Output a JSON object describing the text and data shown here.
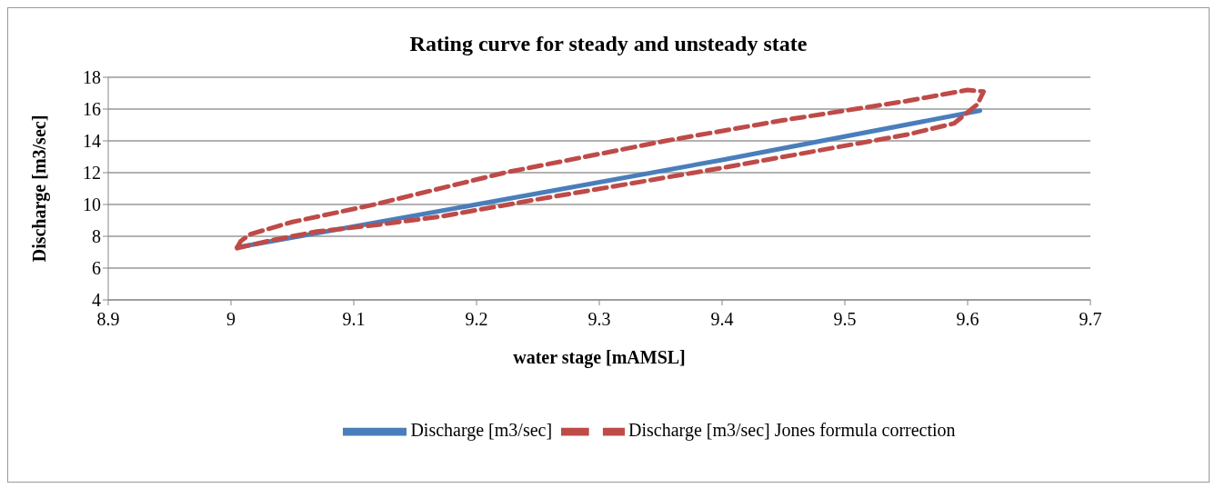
{
  "chart_data": {
    "type": "line",
    "title": "Rating curve for steady and unsteady state",
    "xlabel": "water stage [mAMSL]",
    "ylabel": "Discharge [m3/sec]",
    "xlim": [
      8.9,
      9.7
    ],
    "xticks": [
      8.9,
      9,
      9.1,
      9.2,
      9.3,
      9.4,
      9.5,
      9.6,
      9.7
    ],
    "ylim": [
      4,
      18
    ],
    "yticks": [
      4,
      6,
      8,
      10,
      12,
      14,
      16,
      18
    ],
    "grid": "y",
    "legend": "bottom",
    "marker": "none",
    "series": [
      {
        "name": "Discharge [m3/sec]",
        "color": "#4a7ebb",
        "line_style": "solid",
        "x": [
          9.005,
          9.2,
          9.4,
          9.61
        ],
        "values": [
          7.3,
          10.0,
          12.8,
          15.9
        ]
      },
      {
        "name": "Discharge [m3/sec] Jones formula correction",
        "color": "#be4b48",
        "line_style": "dashed",
        "x": [
          9.005,
          9.008,
          9.016,
          9.05,
          9.117,
          9.223,
          9.354,
          9.45,
          9.5,
          9.55,
          9.6,
          9.613,
          9.608,
          9.589,
          9.551,
          9.4,
          9.248,
          9.172,
          9.117,
          9.07,
          9.03,
          9.005
        ],
        "values": [
          7.3,
          7.7,
          8.14,
          8.9,
          10.0,
          12.0,
          14.0,
          15.3,
          15.9,
          16.5,
          17.2,
          17.1,
          16.3,
          15.1,
          14.4,
          12.3,
          10.3,
          9.26,
          8.7,
          8.3,
          7.7,
          7.25
        ]
      }
    ]
  }
}
